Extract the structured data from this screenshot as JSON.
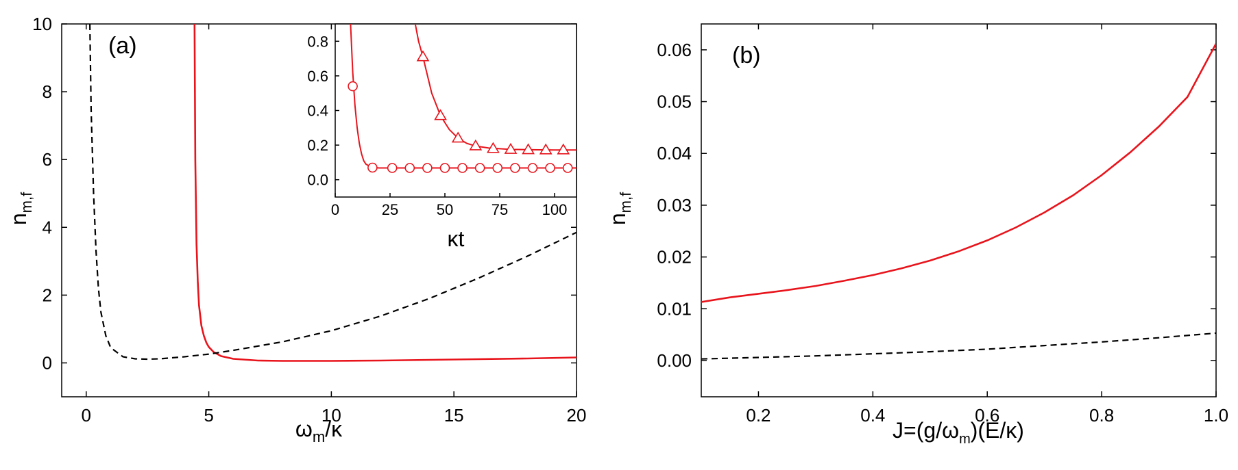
{
  "chart_data": [
    {
      "panel": "(a)",
      "type": "line",
      "xlabel_main": "ω",
      "xlabel_sub": "m",
      "xlabel_tail": "/κ",
      "ylabel_main": "n",
      "ylabel_sub": "m,f",
      "xlim": [
        -1,
        20
      ],
      "ylim": [
        -1,
        10
      ],
      "xticks": [
        0,
        5,
        10,
        15,
        20
      ],
      "xtick_labels": [
        "0",
        "5",
        "10",
        "15",
        "20"
      ],
      "yticks": [
        0,
        2,
        4,
        6,
        8,
        10
      ],
      "ytick_labels": [
        "0",
        "2",
        "4",
        "6",
        "8",
        "10"
      ],
      "series": [
        {
          "name": "red solid",
          "color": "#e8141c",
          "style": "solid",
          "x": [
            4.42,
            4.45,
            4.5,
            4.55,
            4.6,
            4.7,
            4.8,
            4.9,
            5.0,
            5.2,
            5.5,
            6.0,
            7.0,
            8.0,
            10.0,
            12.0,
            15.0,
            18.0,
            20.0
          ],
          "y": [
            10.0,
            6.0,
            3.5,
            2.4,
            1.7,
            1.1,
            0.8,
            0.6,
            0.47,
            0.32,
            0.2,
            0.12,
            0.07,
            0.06,
            0.06,
            0.07,
            0.1,
            0.13,
            0.16
          ]
        },
        {
          "name": "black dashed",
          "color": "#000000",
          "style": "dashed",
          "x": [
            0.15,
            0.2,
            0.3,
            0.4,
            0.5,
            0.6,
            0.8,
            1.0,
            1.5,
            2.0,
            2.5,
            3.0,
            4.0,
            5.0,
            6.0,
            8.0,
            10.0,
            12.0,
            14.0,
            16.0,
            18.0,
            20.0
          ],
          "y": [
            10.0,
            7.5,
            5.0,
            3.3,
            2.2,
            1.5,
            0.8,
            0.45,
            0.18,
            0.12,
            0.11,
            0.12,
            0.18,
            0.26,
            0.37,
            0.62,
            0.95,
            1.38,
            1.9,
            2.5,
            3.15,
            3.85
          ]
        }
      ],
      "inset": {
        "xlabel": "κt",
        "xlim": [
          0,
          110
        ],
        "ylim": [
          -0.1,
          0.9
        ],
        "xticks": [
          0,
          25,
          50,
          75,
          100
        ],
        "xtick_labels": [
          "0",
          "25",
          "50",
          "75",
          "100"
        ],
        "yticks": [
          0.0,
          0.2,
          0.4,
          0.6,
          0.8
        ],
        "ytick_labels": [
          "0.0",
          "0.2",
          "0.4",
          "0.6",
          "0.8"
        ],
        "series": [
          {
            "name": "circles",
            "color": "#e8141c",
            "marker": "circle",
            "x": [
              7.0,
              8.0,
              9.0,
              10.0,
              11.0,
              12.0,
              13.0,
              14.0,
              16.0,
              18.0,
              20.0,
              25.0,
              30.0,
              40.0,
              60.0,
              80.0,
              100.0,
              110.0
            ],
            "y": [
              0.9,
              0.62,
              0.43,
              0.3,
              0.21,
              0.15,
              0.11,
              0.09,
              0.075,
              0.07,
              0.068,
              0.068,
              0.068,
              0.068,
              0.068,
              0.068,
              0.068,
              0.068
            ],
            "marker_x": [
              8.0,
              17.0,
              26.0,
              34.0,
              42.0,
              50.0,
              58.0,
              66.0,
              74.0,
              82.0,
              90.0,
              98.0,
              106.0
            ],
            "marker_y": [
              0.54,
              0.07,
              0.068,
              0.068,
              0.068,
              0.068,
              0.068,
              0.068,
              0.068,
              0.068,
              0.068,
              0.068,
              0.068
            ]
          },
          {
            "name": "triangles",
            "color": "#e8141c",
            "marker": "triangle",
            "x": [
              36.5,
              38.0,
              40.0,
              44.0,
              48.0,
              52.0,
              56.0,
              60.0,
              64.0,
              70.0,
              80.0,
              90.0,
              100.0,
              110.0
            ],
            "y": [
              0.9,
              0.8,
              0.71,
              0.5,
              0.37,
              0.29,
              0.24,
              0.21,
              0.195,
              0.183,
              0.175,
              0.173,
              0.172,
              0.172
            ],
            "marker_x": [
              40.0,
              48.0,
              56.0,
              64.0,
              72.0,
              80.0,
              88.0,
              96.0,
              104.0
            ],
            "marker_y": [
              0.71,
              0.37,
              0.24,
              0.195,
              0.18,
              0.175,
              0.173,
              0.172,
              0.172
            ]
          }
        ]
      }
    },
    {
      "panel": "(b)",
      "type": "line",
      "xlabel": "J=(g/ω",
      "xlabel_sub": "m",
      "xlabel_tail": ")(E/κ)",
      "ylabel_main": "n",
      "ylabel_sub": "m,f",
      "xlim": [
        0.1,
        1.0
      ],
      "ylim": [
        -0.007,
        0.065
      ],
      "xticks": [
        0.2,
        0.4,
        0.6,
        0.8,
        1.0
      ],
      "xtick_labels": [
        "0.2",
        "0.4",
        "0.6",
        "0.8",
        "1.0"
      ],
      "yticks": [
        0.0,
        0.01,
        0.02,
        0.03,
        0.04,
        0.05,
        0.06
      ],
      "ytick_labels": [
        "0.00",
        "0.01",
        "0.02",
        "0.03",
        "0.04",
        "0.05",
        "0.06"
      ],
      "series": [
        {
          "name": "red solid",
          "color": "#e8141c",
          "style": "solid",
          "x": [
            0.1,
            0.15,
            0.2,
            0.25,
            0.3,
            0.35,
            0.4,
            0.45,
            0.5,
            0.55,
            0.6,
            0.65,
            0.7,
            0.75,
            0.8,
            0.85,
            0.9,
            0.95,
            1.0
          ],
          "y": [
            0.0113,
            0.0122,
            0.0129,
            0.0136,
            0.0144,
            0.0154,
            0.0165,
            0.0178,
            0.0193,
            0.0211,
            0.0232,
            0.0257,
            0.0286,
            0.0319,
            0.0358,
            0.0402,
            0.0452,
            0.0509,
            0.0612
          ]
        },
        {
          "name": "black dashed",
          "color": "#000000",
          "style": "dashed",
          "x": [
            0.1,
            0.2,
            0.3,
            0.4,
            0.5,
            0.6,
            0.7,
            0.8,
            0.9,
            1.0
          ],
          "y": [
            0.0003,
            0.0006,
            0.0009,
            0.0013,
            0.0017,
            0.0022,
            0.0029,
            0.0036,
            0.0044,
            0.0053
          ]
        }
      ]
    }
  ]
}
